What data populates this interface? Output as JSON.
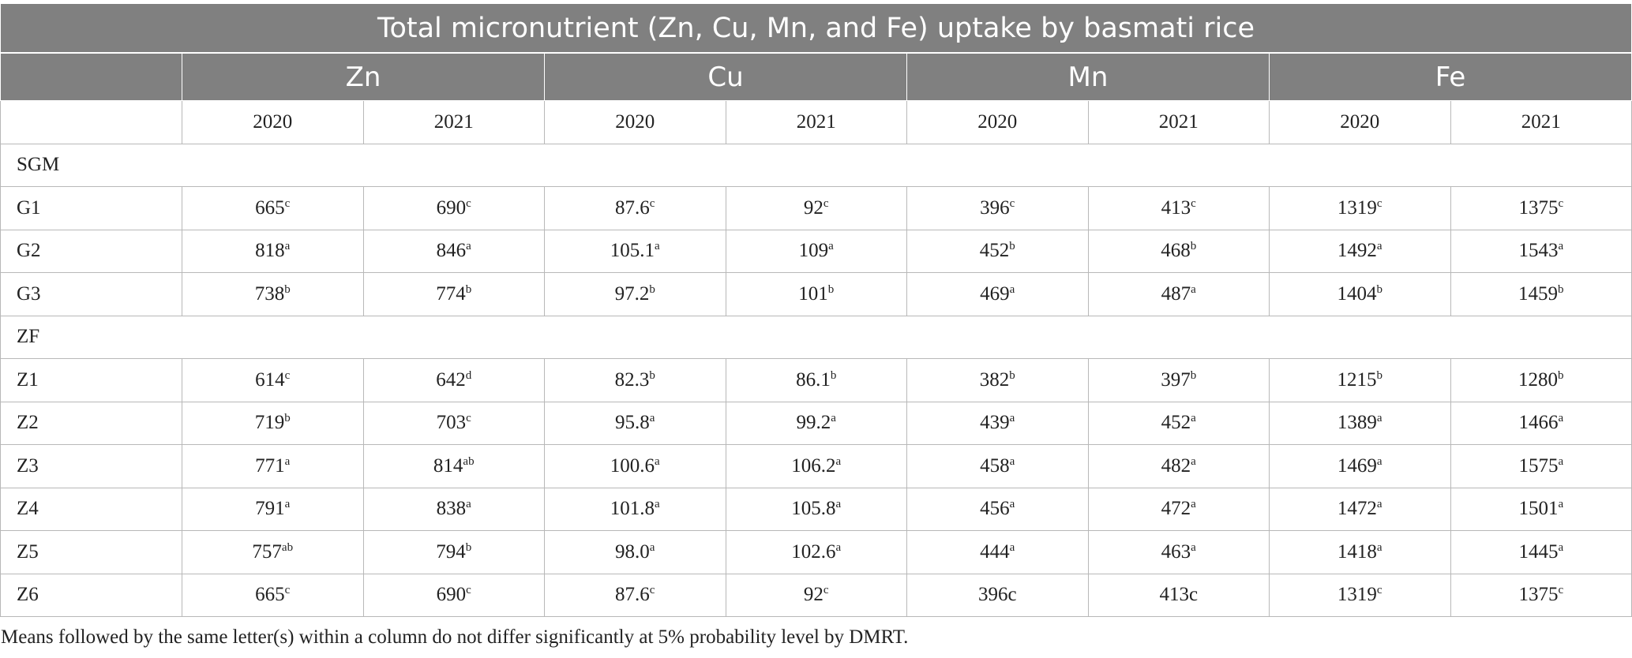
{
  "title": "Total micronutrient (Zn, Cu, Mn, and Fe) uptake by basmati rice",
  "groups": [
    "Zn",
    "Cu",
    "Mn",
    "Fe"
  ],
  "years": [
    "2020",
    "2021",
    "2020",
    "2021",
    "2020",
    "2021",
    "2020",
    "2021"
  ],
  "sections": [
    {
      "name": "SGM",
      "rows": [
        {
          "label": "G1",
          "cells": [
            {
              "v": "665",
              "s": "c"
            },
            {
              "v": "690",
              "s": "c"
            },
            {
              "v": "87.6",
              "s": "c"
            },
            {
              "v": "92",
              "s": "c"
            },
            {
              "v": "396",
              "s": "c"
            },
            {
              "v": "413",
              "s": "c"
            },
            {
              "v": "1319",
              "s": "c"
            },
            {
              "v": "1375",
              "s": "c"
            }
          ]
        },
        {
          "label": "G2",
          "cells": [
            {
              "v": "818",
              "s": "a"
            },
            {
              "v": "846",
              "s": "a"
            },
            {
              "v": "105.1",
              "s": "a"
            },
            {
              "v": "109",
              "s": "a"
            },
            {
              "v": "452",
              "s": "b"
            },
            {
              "v": "468",
              "s": "b"
            },
            {
              "v": "1492",
              "s": "a"
            },
            {
              "v": "1543",
              "s": "a"
            }
          ]
        },
        {
          "label": "G3",
          "cells": [
            {
              "v": "738",
              "s": "b"
            },
            {
              "v": "774",
              "s": "b"
            },
            {
              "v": "97.2",
              "s": "b"
            },
            {
              "v": "101",
              "s": "b"
            },
            {
              "v": "469",
              "s": "a"
            },
            {
              "v": "487",
              "s": "a"
            },
            {
              "v": "1404",
              "s": "b"
            },
            {
              "v": "1459",
              "s": "b"
            }
          ]
        }
      ]
    },
    {
      "name": "ZF",
      "rows": [
        {
          "label": "Z1",
          "cells": [
            {
              "v": "614",
              "s": "c"
            },
            {
              "v": "642",
              "s": "d"
            },
            {
              "v": "82.3",
              "s": "b"
            },
            {
              "v": "86.1",
              "s": "b"
            },
            {
              "v": "382",
              "s": "b"
            },
            {
              "v": "397",
              "s": "b"
            },
            {
              "v": "1215",
              "s": "b"
            },
            {
              "v": "1280",
              "s": "b"
            }
          ]
        },
        {
          "label": "Z2",
          "cells": [
            {
              "v": "719",
              "s": "b"
            },
            {
              "v": "703",
              "s": "c"
            },
            {
              "v": "95.8",
              "s": "a"
            },
            {
              "v": "99.2",
              "s": "a"
            },
            {
              "v": "439",
              "s": "a"
            },
            {
              "v": "452",
              "s": "a"
            },
            {
              "v": "1389",
              "s": "a"
            },
            {
              "v": "1466",
              "s": "a"
            }
          ]
        },
        {
          "label": "Z3",
          "cells": [
            {
              "v": "771",
              "s": "a"
            },
            {
              "v": "814",
              "s": "ab"
            },
            {
              "v": "100.6",
              "s": "a"
            },
            {
              "v": "106.2",
              "s": "a"
            },
            {
              "v": "458",
              "s": "a"
            },
            {
              "v": "482",
              "s": "a"
            },
            {
              "v": "1469",
              "s": "a"
            },
            {
              "v": "1575",
              "s": "a"
            }
          ]
        },
        {
          "label": "Z4",
          "cells": [
            {
              "v": "791",
              "s": "a"
            },
            {
              "v": "838",
              "s": "a"
            },
            {
              "v": "101.8",
              "s": "a"
            },
            {
              "v": "105.8",
              "s": "a"
            },
            {
              "v": "456",
              "s": "a"
            },
            {
              "v": "472",
              "s": "a"
            },
            {
              "v": "1472",
              "s": "a"
            },
            {
              "v": "1501",
              "s": "a"
            }
          ]
        },
        {
          "label": "Z5",
          "cells": [
            {
              "v": "757",
              "s": "ab"
            },
            {
              "v": "794",
              "s": "b"
            },
            {
              "v": "98.0",
              "s": "a"
            },
            {
              "v": "102.6",
              "s": "a"
            },
            {
              "v": "444",
              "s": "a"
            },
            {
              "v": "463",
              "s": "a"
            },
            {
              "v": "1418",
              "s": "a"
            },
            {
              "v": "1445",
              "s": "a"
            }
          ]
        },
        {
          "label": "Z6",
          "cells": [
            {
              "v": "665",
              "s": "c"
            },
            {
              "v": "690",
              "s": "c"
            },
            {
              "v": "87.6",
              "s": "c"
            },
            {
              "v": "92",
              "s": "c"
            },
            {
              "v": "396c",
              "s": ""
            },
            {
              "v": "413c",
              "s": ""
            },
            {
              "v": "1319",
              "s": "c"
            },
            {
              "v": "1375",
              "s": "c"
            }
          ]
        }
      ]
    }
  ],
  "footnote": "Means followed by the same letter(s) within a column do not differ significantly at 5% probability level by DMRT."
}
